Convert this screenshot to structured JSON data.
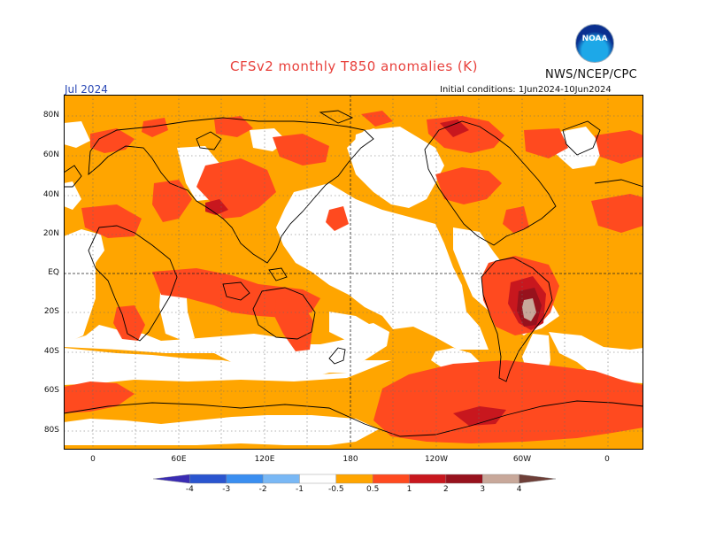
{
  "header": {
    "title": "CFSv2 monthly T850 anomalies (K)",
    "agency": "NWS/NCEP/CPC",
    "logo_text": "NOAA",
    "month": "Jul 2024",
    "initial_conditions": "Initial conditions: 1Jun2024-10Jun2024"
  },
  "map": {
    "lat_labels": [
      "80N",
      "60N",
      "40N",
      "20N",
      "EQ",
      "20S",
      "40S",
      "60S",
      "80S"
    ],
    "lon_labels": [
      "0",
      "60E",
      "120E",
      "180",
      "120W",
      "60W",
      "0"
    ],
    "colors": {
      "c05": "#ffa500",
      "c1": "#ff4a1f",
      "c2": "#c8171e",
      "c3": "#97121d",
      "c4": "#c8a89a"
    }
  },
  "colorbar": {
    "labels": [
      "-4",
      "-3",
      "-2",
      "-1",
      "-0.5",
      "0.5",
      "1",
      "2",
      "3",
      "4"
    ],
    "colors": [
      "#3a2cb3",
      "#2a55cf",
      "#3a8ef0",
      "#79b8f5",
      "#ffffff",
      "#ffa500",
      "#ff4a1f",
      "#c8171e",
      "#97121d",
      "#c8a89a",
      "#6e3f38"
    ]
  }
}
